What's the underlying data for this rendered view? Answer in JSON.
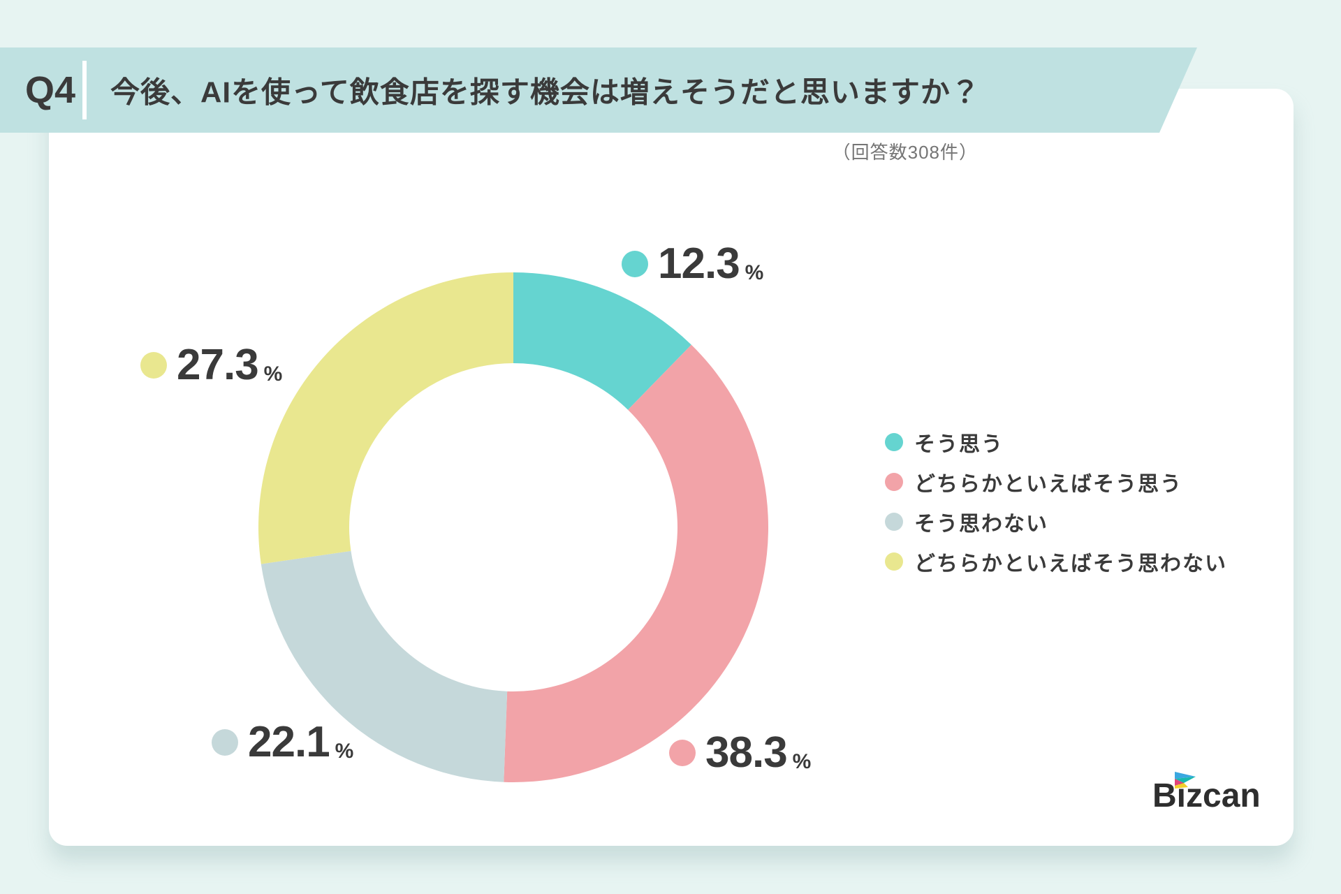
{
  "header": {
    "question_number": "Q4",
    "title": "今後、AIを使って飲食店を探す機会は増えそうだと思いますか？"
  },
  "respondents_note": "（回答数308件）",
  "chart_data": {
    "type": "pie",
    "subtype": "donut",
    "title": "今後、AIを使って飲食店を探す機会は増えそうだと思いますか？",
    "total_responses": 308,
    "unit": "%",
    "start_angle_deg": 0,
    "direction": "clockwise",
    "legend_position": "right",
    "categories": [
      "そう思う",
      "どちらかといえばそう思う",
      "そう思わない",
      "どちらかといえばそう思わない"
    ],
    "values": [
      12.3,
      38.3,
      22.1,
      27.3
    ],
    "colors": [
      "#65d4d0",
      "#f2a3a8",
      "#c5d8da",
      "#e9e78f"
    ]
  },
  "colors": {
    "background": "#e7f4f2",
    "band": "#bfe1e1",
    "card": "#ffffff",
    "text_dark": "#3a3a3a",
    "text_gray": "#757575"
  },
  "logo": {
    "text": "Bizcan"
  }
}
